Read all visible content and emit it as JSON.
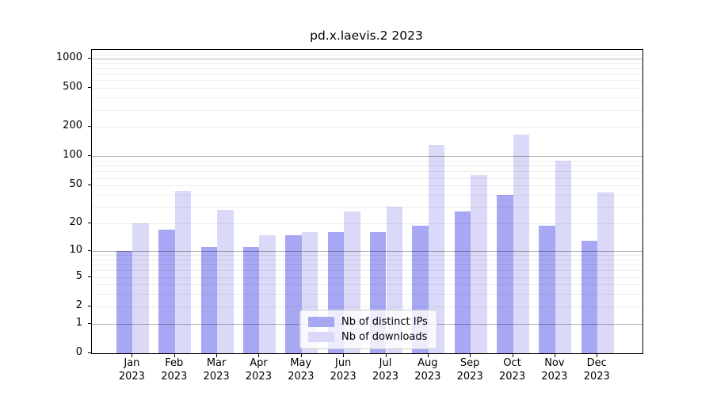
{
  "chart_data": {
    "type": "bar",
    "title": "pd.x.laevis.2 2023",
    "categories": [
      "Jan",
      "Feb",
      "Mar",
      "Apr",
      "May",
      "Jun",
      "Jul",
      "Aug",
      "Sep",
      "Oct",
      "Nov",
      "Dec"
    ],
    "year_label": "2023",
    "series": [
      {
        "name": "Nb of distinct IPs",
        "color": "#a7a7f3",
        "values": [
          10,
          17,
          11,
          11,
          15,
          16,
          16,
          19,
          27,
          40,
          19,
          13
        ]
      },
      {
        "name": "Nb of downloads",
        "color": "#dadaf8",
        "values": [
          20,
          44,
          28,
          15,
          16,
          27,
          30,
          130,
          64,
          166,
          90,
          42
        ]
      }
    ],
    "xlabel": "",
    "ylabel": "",
    "y_scale": "log10(1+x)",
    "y_ticks": [
      0,
      1,
      2,
      5,
      10,
      20,
      50,
      100,
      200,
      500,
      1000
    ],
    "y_tick_labels": [
      "0",
      "1",
      "2",
      "5",
      "10",
      "20",
      "50",
      "100",
      "200",
      "500",
      "1000"
    ],
    "ylim": [
      0,
      1200
    ],
    "grid": "horizontal, minor lines light gray, decade lines (1,10,100,1000) darker gray, drawn over bars",
    "legend": {
      "position": "bottom-center",
      "entries": [
        "Nb of distinct IPs",
        "Nb of downloads"
      ]
    }
  }
}
